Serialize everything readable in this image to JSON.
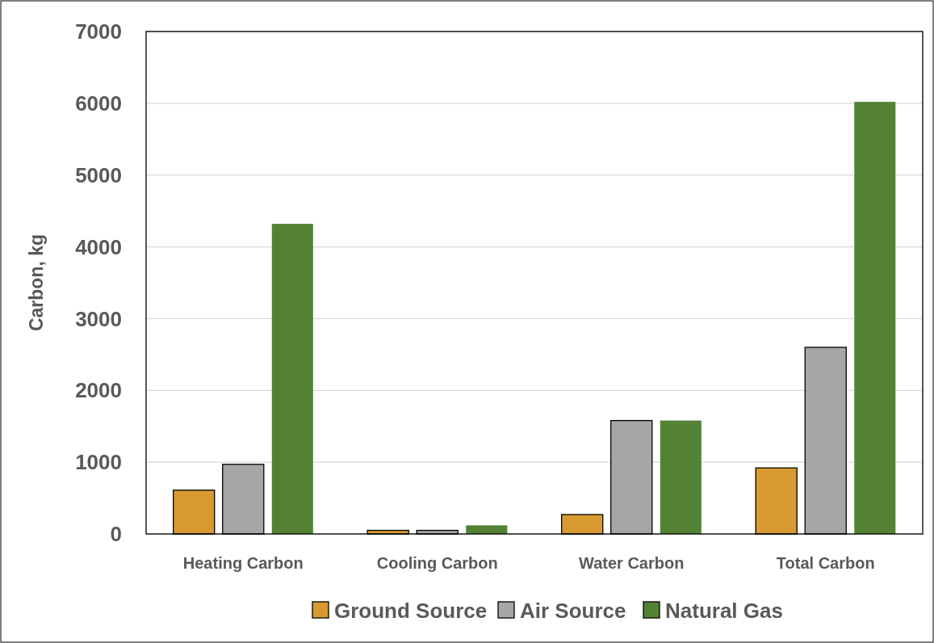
{
  "chart_data": {
    "type": "bar",
    "ylabel": "Carbon, kg",
    "categories": [
      "Heating Carbon",
      "Cooling Carbon",
      "Water Carbon",
      "Total Carbon"
    ],
    "series": [
      {
        "name": "Ground Source",
        "color": "#d89a30",
        "values": [
          610,
          50,
          270,
          920
        ]
      },
      {
        "name": "Air Source",
        "color": "#a6a6a6",
        "values": [
          970,
          50,
          1580,
          2600
        ]
      },
      {
        "name": "Natural Gas",
        "color": "#548235",
        "values": [
          4320,
          120,
          1580,
          6020
        ]
      }
    ],
    "ylim": [
      0,
      7000
    ],
    "yticks": [
      0,
      1000,
      2000,
      3000,
      4000,
      5000,
      6000,
      7000
    ],
    "grid": "y",
    "legend": "bottom"
  }
}
